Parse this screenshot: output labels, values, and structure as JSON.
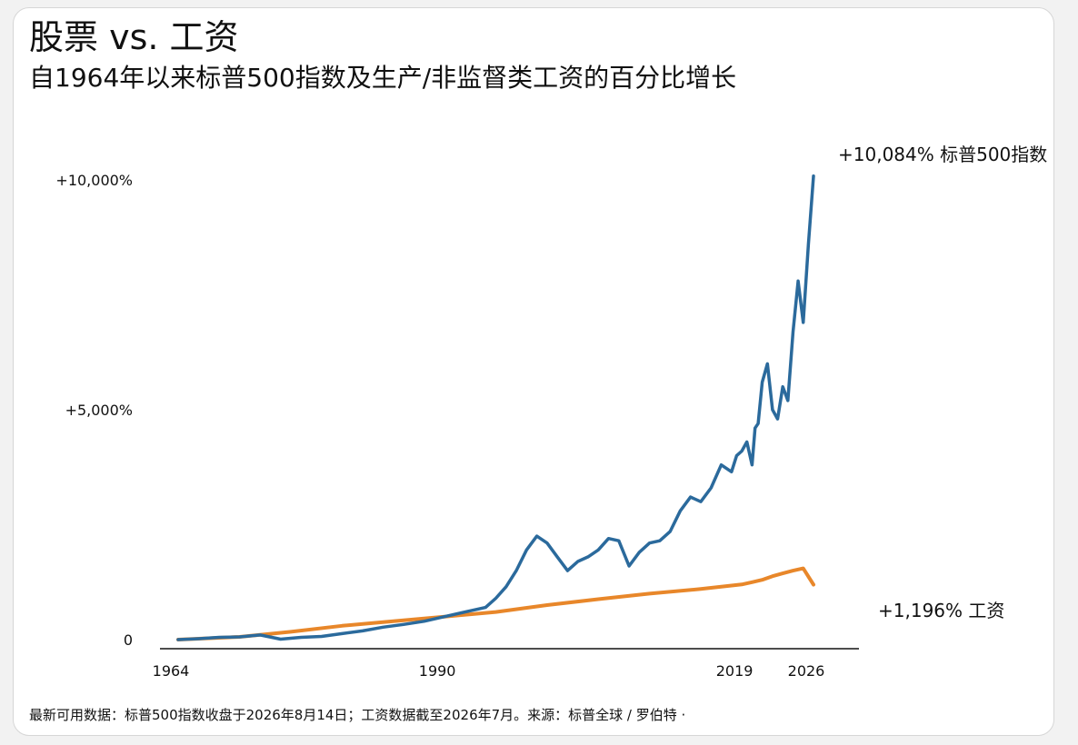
{
  "title": "股票 vs. 工资",
  "subtitle": "自1964年以来标普500指数及生产/非监督类工资的百分比增长",
  "footer": "最新可用数据：标普500指数收盘于2026年8月14日；工资数据截至2026年7月。来源：标普全球 / 罗伯特 ·",
  "colors": {
    "sp500": "#2b6a9c",
    "wages": "#e8872a",
    "axis": "#111111"
  },
  "chart_data": {
    "type": "line",
    "title": "股票 vs. 工资",
    "subtitle": "自1964年以来标普500指数及生产/非监督类工资的百分比增长",
    "xlabel": "",
    "ylabel": "",
    "xlim": [
      1964,
      2026
    ],
    "ylim": [
      0,
      10000
    ],
    "x_ticks": [
      1964,
      1990,
      2019,
      2026
    ],
    "x_tick_labels": [
      "1964",
      "1990",
      "2019",
      "2026"
    ],
    "y_ticks": [
      0,
      5000,
      10000
    ],
    "y_tick_labels": [
      "0",
      "+5,000%",
      "+10,000%"
    ],
    "grid": false,
    "legend": "none",
    "series": [
      {
        "key": "sp500",
        "end_label": "+10,084% 标普500指数",
        "x": [
          1964,
          1966,
          1968,
          1970,
          1972,
          1974,
          1976,
          1978,
          1980,
          1982,
          1984,
          1986,
          1988,
          1990,
          1992,
          1994,
          1995,
          1996,
          1997,
          1998,
          1999,
          2000,
          2001,
          2002,
          2003,
          2004,
          2005,
          2006,
          2007,
          2008,
          2009,
          2010,
          2011,
          2012,
          2013,
          2014,
          2015,
          2016,
          2017,
          2018,
          2018.5,
          2019,
          2019.5,
          2020,
          2020.3,
          2020.6,
          2021,
          2021.5,
          2022,
          2022.5,
          2023,
          2023.5,
          2024,
          2024.5,
          2025,
          2025.5,
          2026
        ],
        "y": [
          0,
          20,
          50,
          60,
          100,
          10,
          50,
          70,
          130,
          190,
          270,
          330,
          400,
          500,
          600,
          700,
          900,
          1150,
          1500,
          1950,
          2250,
          2100,
          1800,
          1500,
          1700,
          1800,
          1950,
          2200,
          2150,
          1600,
          1900,
          2100,
          2150,
          2350,
          2800,
          3100,
          3000,
          3300,
          3800,
          3650,
          4000,
          4100,
          4300,
          3800,
          4600,
          4700,
          5600,
          6000,
          5000,
          4800,
          5500,
          5200,
          6700,
          7800,
          6900,
          8600,
          10084
        ]
      },
      {
        "key": "wages",
        "end_label": "+1,196% 工资",
        "x": [
          1964,
          1970,
          1975,
          1980,
          1985,
          1990,
          1995,
          2000,
          2005,
          2010,
          2015,
          2019,
          2020,
          2021,
          2022,
          2023,
          2024,
          2025,
          2026
        ],
        "y": [
          0,
          60,
          170,
          300,
          400,
          500,
          600,
          750,
          880,
          1000,
          1100,
          1200,
          1250,
          1300,
          1380,
          1440,
          1500,
          1550,
          1196
        ]
      }
    ]
  }
}
